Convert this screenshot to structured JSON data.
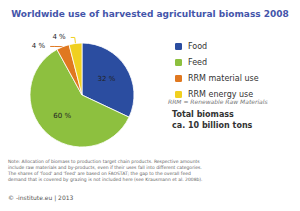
{
  "chart_data": {
    "type": "pie",
    "title": "Worldwide use of harvested agricultural biomass 2008",
    "categories": [
      "Food",
      "Feed",
      "RRM material use",
      "RRM energy use"
    ],
    "values": [
      32,
      60,
      4,
      4
    ],
    "value_labels": [
      "32 %",
      "60 %",
      "4 %",
      "4 %"
    ],
    "colors": [
      "#2b4da0",
      "#8dc03f",
      "#e07820",
      "#f0d020"
    ],
    "data_labels": true,
    "legend": "right",
    "annotations": [
      "RRM = Renewable Raw Materials",
      "Total biomass",
      "ca. 10 billion tons",
      "Note: Allocation of biomass to production target chain products. Respective amounts\ninclude raw materials and by-products, even if their uses fall into different categories.\nThe shares of 'food' and 'feed' are based on FAOSTAT; the gap to the overall feed\ndemand that is covered by grazing is not included here (see Krausmann et al. 2008b).",
      "© -institute.eu | 2013"
    ]
  }
}
